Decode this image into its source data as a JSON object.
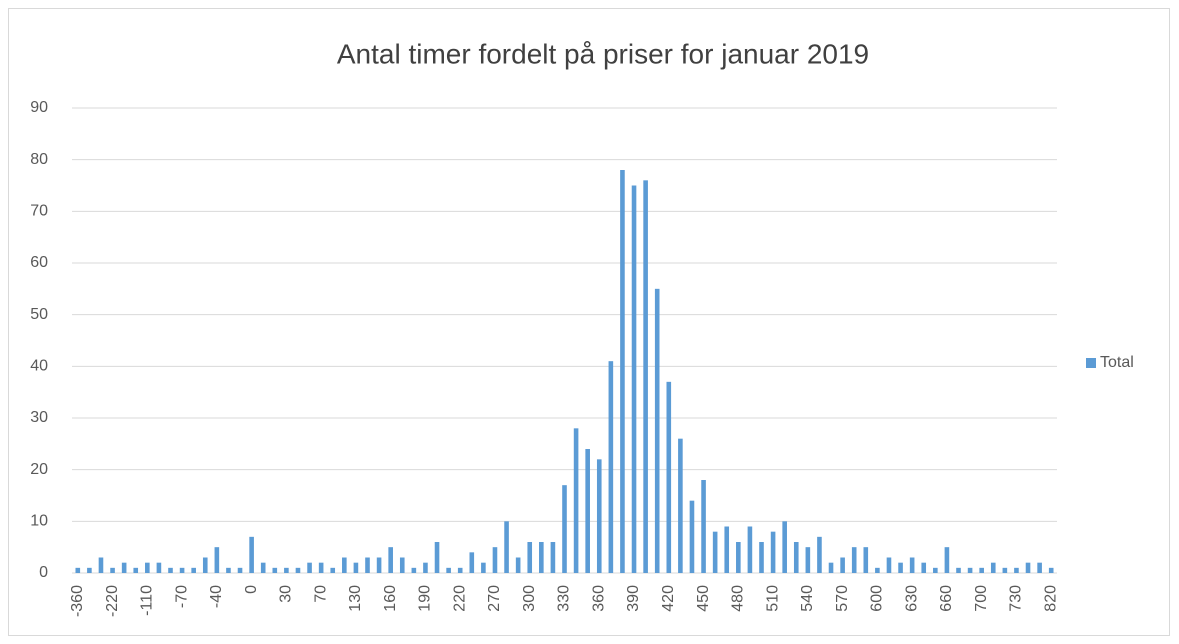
{
  "chart_data": {
    "type": "bar",
    "title": "Antal timer fordelt på priser for januar 2019",
    "categories": [
      "-360",
      null,
      null,
      "-220",
      null,
      null,
      "-110",
      null,
      null,
      "-70",
      null,
      null,
      "-40",
      null,
      null,
      "0",
      null,
      null,
      "30",
      null,
      null,
      "70",
      null,
      null,
      "130",
      null,
      null,
      "160",
      null,
      null,
      "190",
      null,
      null,
      "220",
      null,
      null,
      "270",
      null,
      null,
      "300",
      null,
      null,
      "330",
      null,
      null,
      "360",
      null,
      null,
      "390",
      null,
      null,
      "420",
      null,
      null,
      "450",
      null,
      null,
      "480",
      null,
      null,
      "510",
      null,
      null,
      "540",
      null,
      null,
      "570",
      null,
      null,
      "600",
      null,
      null,
      "630",
      null,
      null,
      "660",
      null,
      null,
      "700",
      null,
      null,
      "730",
      null,
      null,
      "820"
    ],
    "series": [
      {
        "name": "Total",
        "color": "#5b9bd5",
        "values": [
          1,
          1,
          3,
          1,
          2,
          1,
          2,
          2,
          1,
          1,
          1,
          3,
          5,
          1,
          1,
          7,
          2,
          1,
          1,
          1,
          2,
          2,
          1,
          3,
          2,
          3,
          3,
          5,
          3,
          1,
          2,
          6,
          1,
          1,
          4,
          2,
          5,
          10,
          3,
          6,
          6,
          6,
          17,
          28,
          24,
          22,
          41,
          78,
          75,
          76,
          55,
          37,
          26,
          14,
          18,
          8,
          9,
          6,
          9,
          6,
          8,
          10,
          6,
          5,
          7,
          2,
          3,
          5,
          5,
          1,
          3,
          2,
          3,
          2,
          1,
          5,
          1,
          1,
          1,
          2,
          1,
          1,
          2,
          2,
          1
        ]
      }
    ],
    "ylim": [
      0,
      90
    ],
    "yticks": [
      0,
      10,
      20,
      30,
      40,
      50,
      60,
      70,
      80,
      90
    ],
    "grid": true,
    "legend": "right"
  }
}
